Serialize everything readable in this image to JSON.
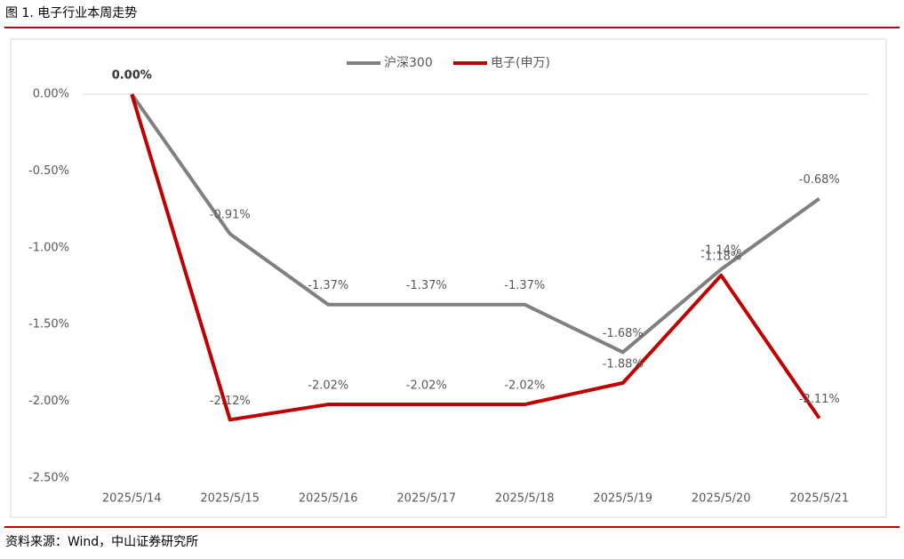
{
  "figure_title": "图 1. 电子行业本周走势",
  "source": "资料来源：Wind，中山证券研究所",
  "chart_data": {
    "type": "line",
    "categories": [
      "2025/5/14",
      "2025/5/15",
      "2025/5/16",
      "2025/5/17",
      "2025/5/18",
      "2025/5/19",
      "2025/5/20",
      "2025/5/21"
    ],
    "series": [
      {
        "name": "沪深300",
        "color": "#808080",
        "values": [
          0,
          -0.91,
          -1.37,
          -1.37,
          -1.37,
          -1.68,
          -1.14,
          -0.68
        ],
        "value_labels": [
          "0.00%",
          "-0.91%",
          "-1.37%",
          "-1.37%",
          "-1.37%",
          "-1.68%",
          "-1.14%",
          "-0.68%"
        ]
      },
      {
        "name": "电子(申万)",
        "color": "#c00000",
        "values": [
          0,
          -2.12,
          -2.02,
          -2.02,
          -2.02,
          -1.88,
          -1.18,
          -2.11
        ],
        "value_labels": [
          "0.00%",
          "-2.12%",
          "-2.02%",
          "-2.02%",
          "-2.02%",
          "-1.88%",
          "-1.18%",
          "-2.11%"
        ]
      }
    ],
    "ylim": [
      -2.5,
      0
    ],
    "yticks": [
      {
        "value": 0,
        "label": "0.00%"
      },
      {
        "value": -0.5,
        "label": "-0.50%"
      },
      {
        "value": -1,
        "label": "-1.00%"
      },
      {
        "value": -1.5,
        "label": "-1.50%"
      },
      {
        "value": -2,
        "label": "-2.00%"
      },
      {
        "value": -2.5,
        "label": "-2.50%"
      }
    ],
    "legend": "top"
  }
}
